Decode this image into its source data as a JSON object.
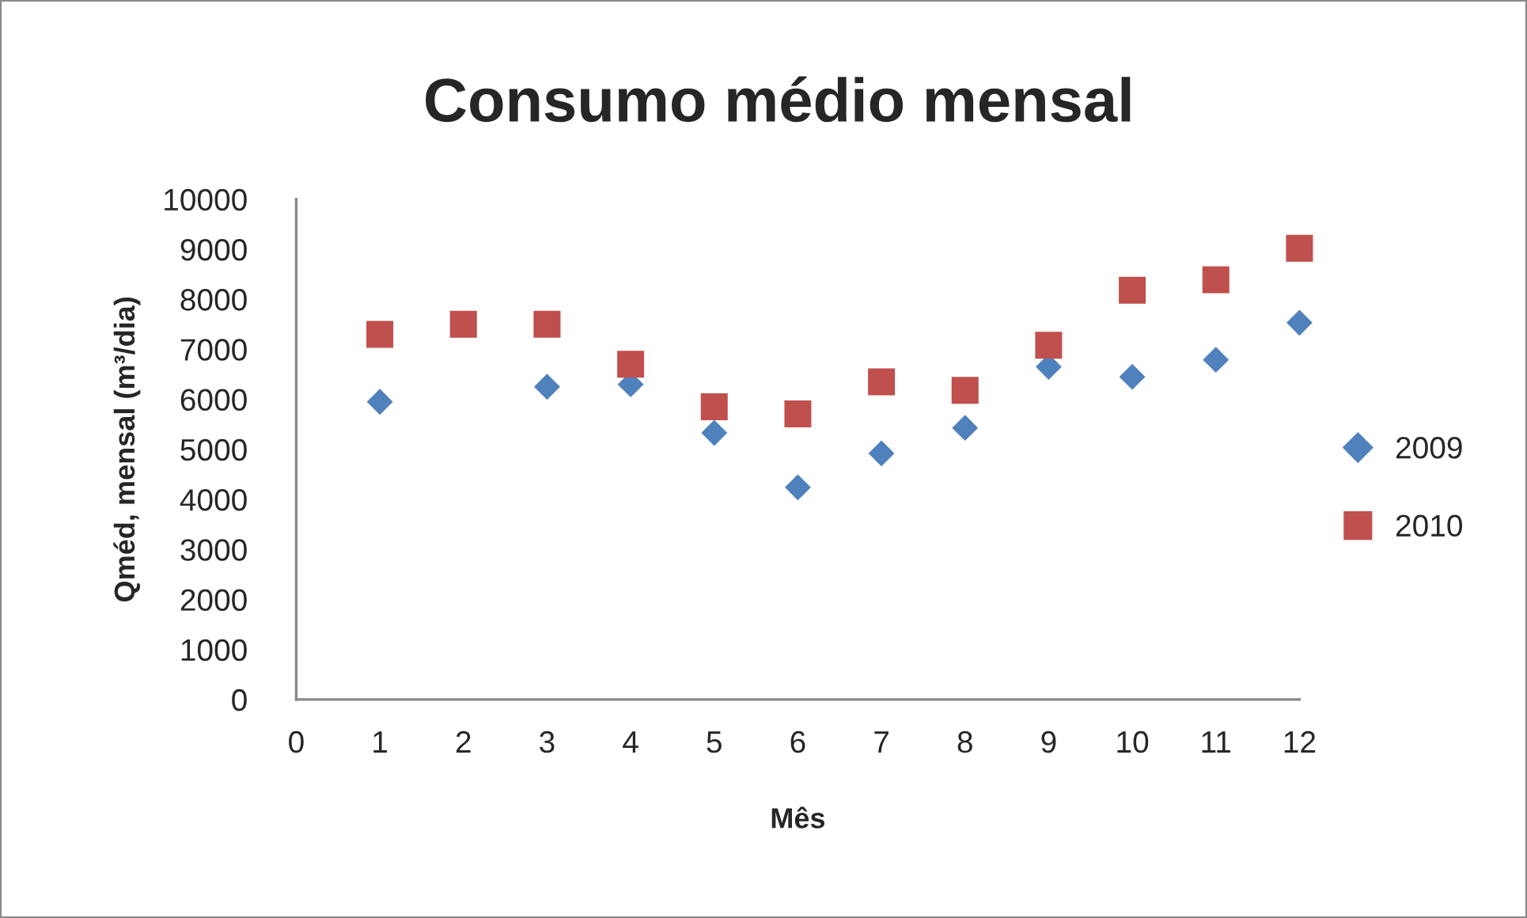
{
  "chart_data": {
    "type": "scatter",
    "title": "Consumo médio mensal",
    "xlabel": "Mês",
    "ylabel": "Qméd, mensal (m³/dia)",
    "x": [
      1,
      2,
      3,
      4,
      5,
      6,
      7,
      8,
      9,
      10,
      11,
      12
    ],
    "series": [
      {
        "name": "2009",
        "color": "#4f81bd",
        "marker": "diamond",
        "values": [
          5950,
          null,
          6250,
          6300,
          5330,
          4240,
          4920,
          5430,
          6650,
          6450,
          6790,
          7530
        ]
      },
      {
        "name": "2010",
        "color": "#c0504d",
        "marker": "square",
        "values": [
          7300,
          7500,
          7500,
          6700,
          5850,
          5710,
          6350,
          6180,
          7080,
          8180,
          8390,
          9020
        ]
      }
    ],
    "xlim": [
      0,
      12
    ],
    "xticks": [
      0,
      1,
      2,
      3,
      4,
      5,
      6,
      7,
      8,
      9,
      10,
      11,
      12
    ],
    "ylim": [
      0,
      10000
    ],
    "yticks": [
      0,
      1000,
      2000,
      3000,
      4000,
      5000,
      6000,
      7000,
      8000,
      9000,
      10000
    ],
    "grid": false,
    "legend": "right"
  }
}
